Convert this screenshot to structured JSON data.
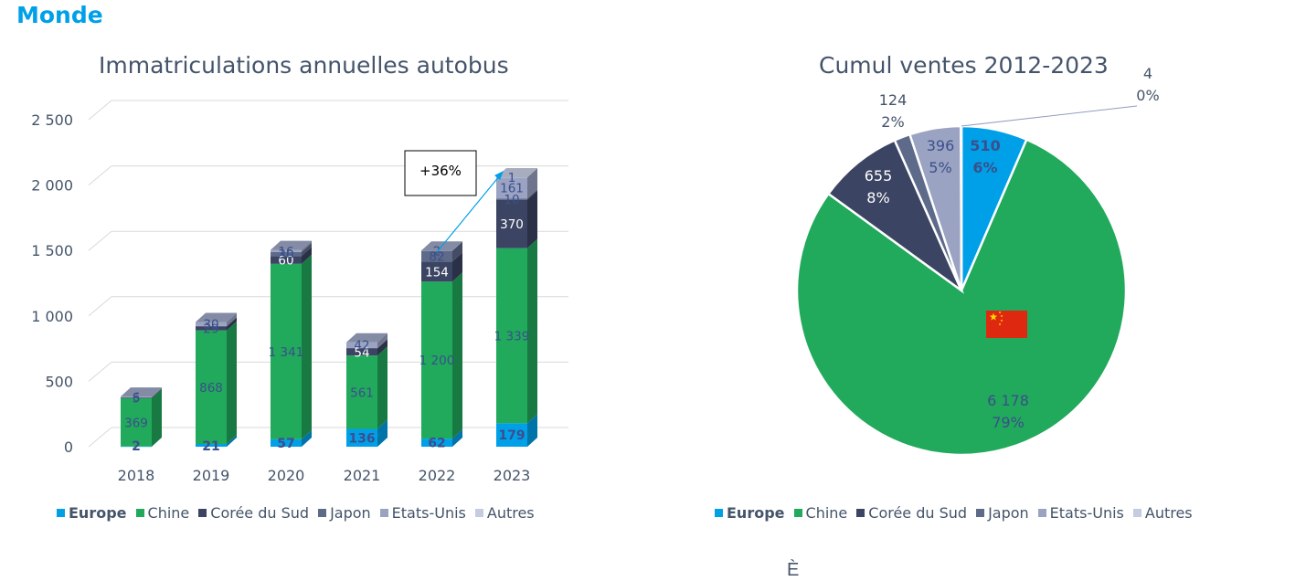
{
  "page": {
    "heading": "Monde",
    "stray_glyph": "È"
  },
  "colors": {
    "Europe": "#00a0e9",
    "Chine": "#21a95c",
    "Corée du Sud": "#3b4462",
    "Japon": "#5e6a8a",
    "Etats-Unis": "#9aa3c2",
    "Autres": "#c5cbe0"
  },
  "chart_data": [
    {
      "type": "bar",
      "title": "Immatriculations annuelles autobus",
      "stacked": true,
      "categories": [
        "2018",
        "2019",
        "2020",
        "2021",
        "2022",
        "2023"
      ],
      "ylim": [
        0,
        2500
      ],
      "yticks": [
        0,
        500,
        1000,
        1500,
        2000,
        2500
      ],
      "ytick_labels": [
        "0",
        "500",
        "1 000",
        "1 500",
        "2 000",
        "2 500"
      ],
      "series": [
        {
          "name": "Europe",
          "values": [
            2,
            21,
            57,
            136,
            62,
            179
          ],
          "labels": [
            "2",
            "21",
            "57",
            "136",
            "62",
            "179"
          ]
        },
        {
          "name": "Chine",
          "values": [
            369,
            868,
            1341,
            561,
            1200,
            1339
          ],
          "labels": [
            "369",
            "868",
            "1 341",
            "561",
            "1 200",
            "1 339"
          ]
        },
        {
          "name": "Corée du Sud",
          "values": [
            5,
            29,
            60,
            54,
            154,
            370
          ],
          "labels": [
            "5",
            "29",
            "60",
            "54",
            "154",
            "370"
          ]
        },
        {
          "name": "Japon",
          "values": [
            1,
            5,
            30,
            5,
            82,
            10
          ],
          "labels": [
            "",
            "",
            "30",
            "",
            "82",
            "10"
          ]
        },
        {
          "name": "Etats-Unis",
          "values": [
            6,
            30,
            16,
            42,
            2,
            161
          ],
          "labels": [
            "6",
            "30",
            "16",
            "42",
            "2",
            "161"
          ]
        },
        {
          "name": "Autres",
          "values": [
            0,
            0,
            0,
            0,
            0,
            1
          ],
          "labels": [
            "",
            "",
            "",
            "",
            "",
            "1"
          ]
        }
      ],
      "annotation": "+36%",
      "legend_position": "bottom",
      "grid": true
    },
    {
      "type": "pie",
      "title": "Cumul ventes 2012-2023",
      "slices": [
        {
          "name": "Europe",
          "value": 510,
          "value_label": "510",
          "percent_label": "6%"
        },
        {
          "name": "Chine",
          "value": 6178,
          "value_label": "6 178",
          "percent_label": "79%"
        },
        {
          "name": "Corée du Sud",
          "value": 655,
          "value_label": "655",
          "percent_label": "8%"
        },
        {
          "name": "Japon",
          "value": 124,
          "value_label": "124",
          "percent_label": "2%"
        },
        {
          "name": "Etats-Unis",
          "value": 396,
          "value_label": "396",
          "percent_label": "5%"
        },
        {
          "name": "Autres",
          "value": 4,
          "value_label": "4",
          "percent_label": "0%"
        }
      ],
      "legend_position": "bottom"
    }
  ],
  "legend": [
    "Europe",
    "Chine",
    "Corée du Sud",
    "Japon",
    "Etats-Unis",
    "Autres"
  ]
}
